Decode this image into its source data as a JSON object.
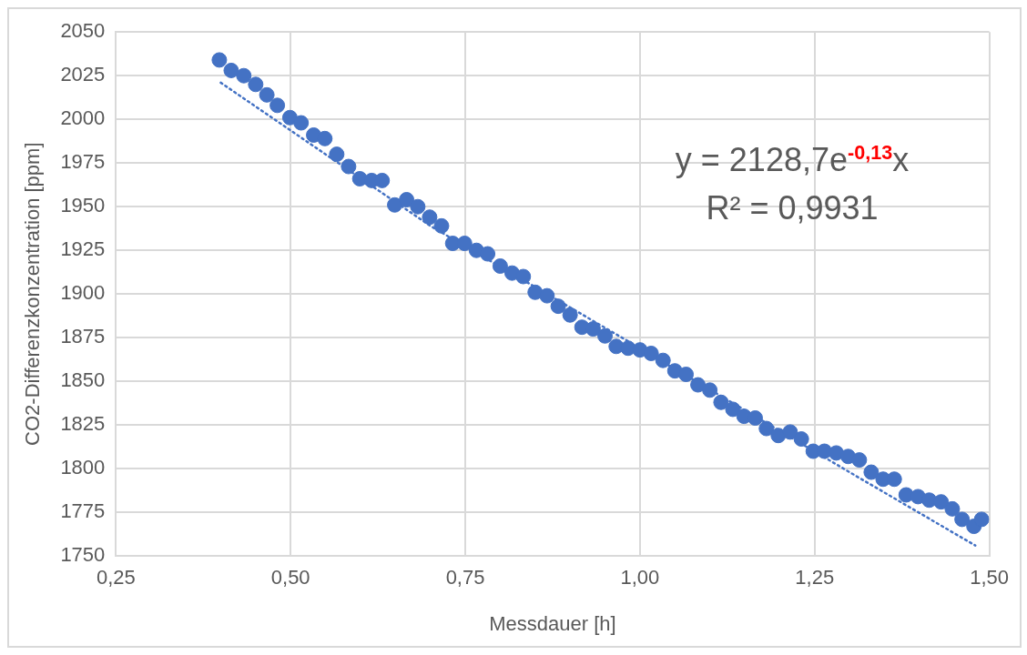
{
  "chart_data": {
    "type": "scatter",
    "xlabel": "Messdauer [h]",
    "ylabel": "CO2-Differenzkonzentration [ppm]",
    "xlim": [
      0.25,
      1.5
    ],
    "xticks": [
      {
        "value": 0.25,
        "label": "0,25"
      },
      {
        "value": 0.5,
        "label": "0,50"
      },
      {
        "value": 0.75,
        "label": "0,75"
      },
      {
        "value": 1,
        "label": "1,00"
      },
      {
        "value": 1.25,
        "label": "1,25"
      },
      {
        "value": 1.5,
        "label": "1,50"
      }
    ],
    "ylim": [
      1750,
      2050
    ],
    "yticks": [
      1750,
      1775,
      1800,
      1825,
      1850,
      1875,
      1900,
      1925,
      1950,
      1975,
      2000,
      2025,
      2050
    ],
    "grid": true,
    "legend": false,
    "marker": "circle",
    "series": [
      {
        "color": "#4472c4",
        "x": [
          0.398,
          0.415,
          0.433,
          0.45,
          0.466,
          0.481,
          0.499,
          0.515,
          0.533,
          0.549,
          0.566,
          0.583,
          0.599,
          0.616,
          0.631,
          0.649,
          0.666,
          0.682,
          0.699,
          0.716,
          0.732,
          0.749,
          0.766,
          0.782,
          0.8,
          0.817,
          0.833,
          0.85,
          0.867,
          0.883,
          0.9,
          0.917,
          0.933,
          0.95,
          0.966,
          0.983,
          1.0,
          1.016,
          1.033,
          1.05,
          1.066,
          1.083,
          1.1,
          1.116,
          1.133,
          1.149,
          1.165,
          1.181,
          1.198,
          1.215,
          1.231,
          1.248,
          1.264,
          1.281,
          1.298,
          1.314,
          1.331,
          1.348,
          1.364,
          1.381,
          1.398,
          1.414,
          1.431,
          1.447,
          1.461,
          1.478,
          1.489
        ],
        "values": [
          2034,
          2028,
          2025,
          2020,
          2014,
          2008,
          2001,
          1998,
          1991,
          1989,
          1980,
          1973,
          1966,
          1965,
          1965,
          1951,
          1954,
          1950,
          1944,
          1939,
          1929,
          1929,
          1925,
          1923,
          1916,
          1912,
          1910,
          1901,
          1899,
          1893,
          1888,
          1881,
          1880,
          1876,
          1870,
          1869,
          1868,
          1866,
          1862,
          1856,
          1854,
          1848,
          1845,
          1838,
          1834,
          1830,
          1829,
          1823,
          1819,
          1821,
          1817,
          1810,
          1810,
          1809,
          1807,
          1805,
          1798,
          1794,
          1794,
          1785,
          1784,
          1782,
          1781,
          1777,
          1771,
          1767,
          1771
        ]
      },
      {
        "type": "line",
        "color": "#4472c4",
        "line_style": "dotted",
        "marker": "none",
        "x": [
          0.4,
          0.7,
          1.0,
          1.3,
          1.48
        ],
        "values": [
          2021,
          1939,
          1869,
          1798,
          1756
        ]
      }
    ],
    "annotations": [
      "y = 2128,7e$^{-0,13}$x",
      "R² = 0,9931"
    ]
  }
}
